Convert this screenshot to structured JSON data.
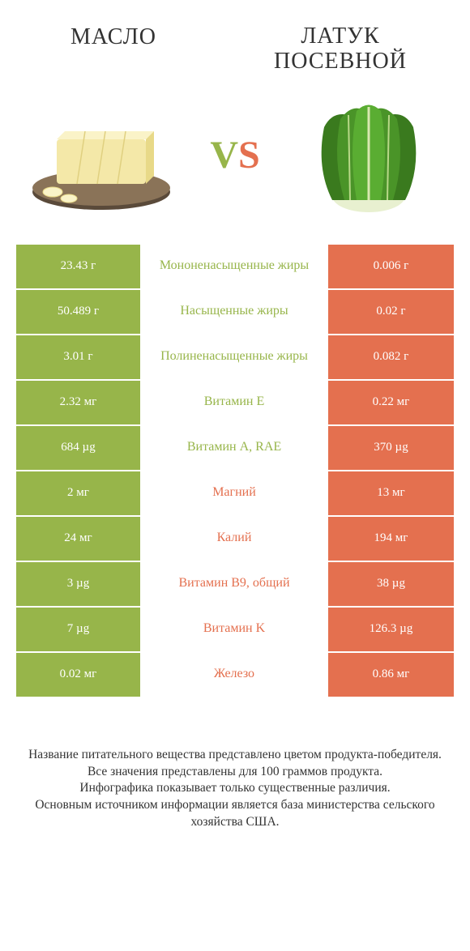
{
  "colors": {
    "left_bg": "#97b54a",
    "right_bg": "#e4704f",
    "left_text": "#ffffff",
    "right_text": "#ffffff",
    "mid_left_color": "#97b54a",
    "mid_right_color": "#e4704f",
    "page_bg": "#ffffff",
    "title_color": "#333333"
  },
  "header": {
    "left_title": "Масло",
    "right_title": "Латук посевной",
    "vs_v": "V",
    "vs_s": "S"
  },
  "rows": [
    {
      "left": "23.43 г",
      "mid": "Мононенасыщенные жиры",
      "right": "0.006 г",
      "winner": "left"
    },
    {
      "left": "50.489 г",
      "mid": "Насыщенные жиры",
      "right": "0.02 г",
      "winner": "left"
    },
    {
      "left": "3.01 г",
      "mid": "Полиненасыщенные жиры",
      "right": "0.082 г",
      "winner": "left"
    },
    {
      "left": "2.32 мг",
      "mid": "Витамин E",
      "right": "0.22 мг",
      "winner": "left"
    },
    {
      "left": "684 µg",
      "mid": "Витамин A, RAE",
      "right": "370 µg",
      "winner": "left"
    },
    {
      "left": "2 мг",
      "mid": "Магний",
      "right": "13 мг",
      "winner": "right"
    },
    {
      "left": "24 мг",
      "mid": "Калий",
      "right": "194 мг",
      "winner": "right"
    },
    {
      "left": "3 µg",
      "mid": "Витамин B9, общий",
      "right": "38 µg",
      "winner": "right"
    },
    {
      "left": "7 µg",
      "mid": "Витамин K",
      "right": "126.3 µg",
      "winner": "right"
    },
    {
      "left": "0.02 мг",
      "mid": "Железо",
      "right": "0.86 мг",
      "winner": "right"
    }
  ],
  "footer": {
    "line1": "Название питательного вещества представлено цветом продукта-победителя.",
    "line2": "Все значения представлены для 100 граммов продукта.",
    "line3": "Инфографика показывает только существенные различия.",
    "line4": "Основным источником информации является база министерства сельского хозяйства США."
  }
}
